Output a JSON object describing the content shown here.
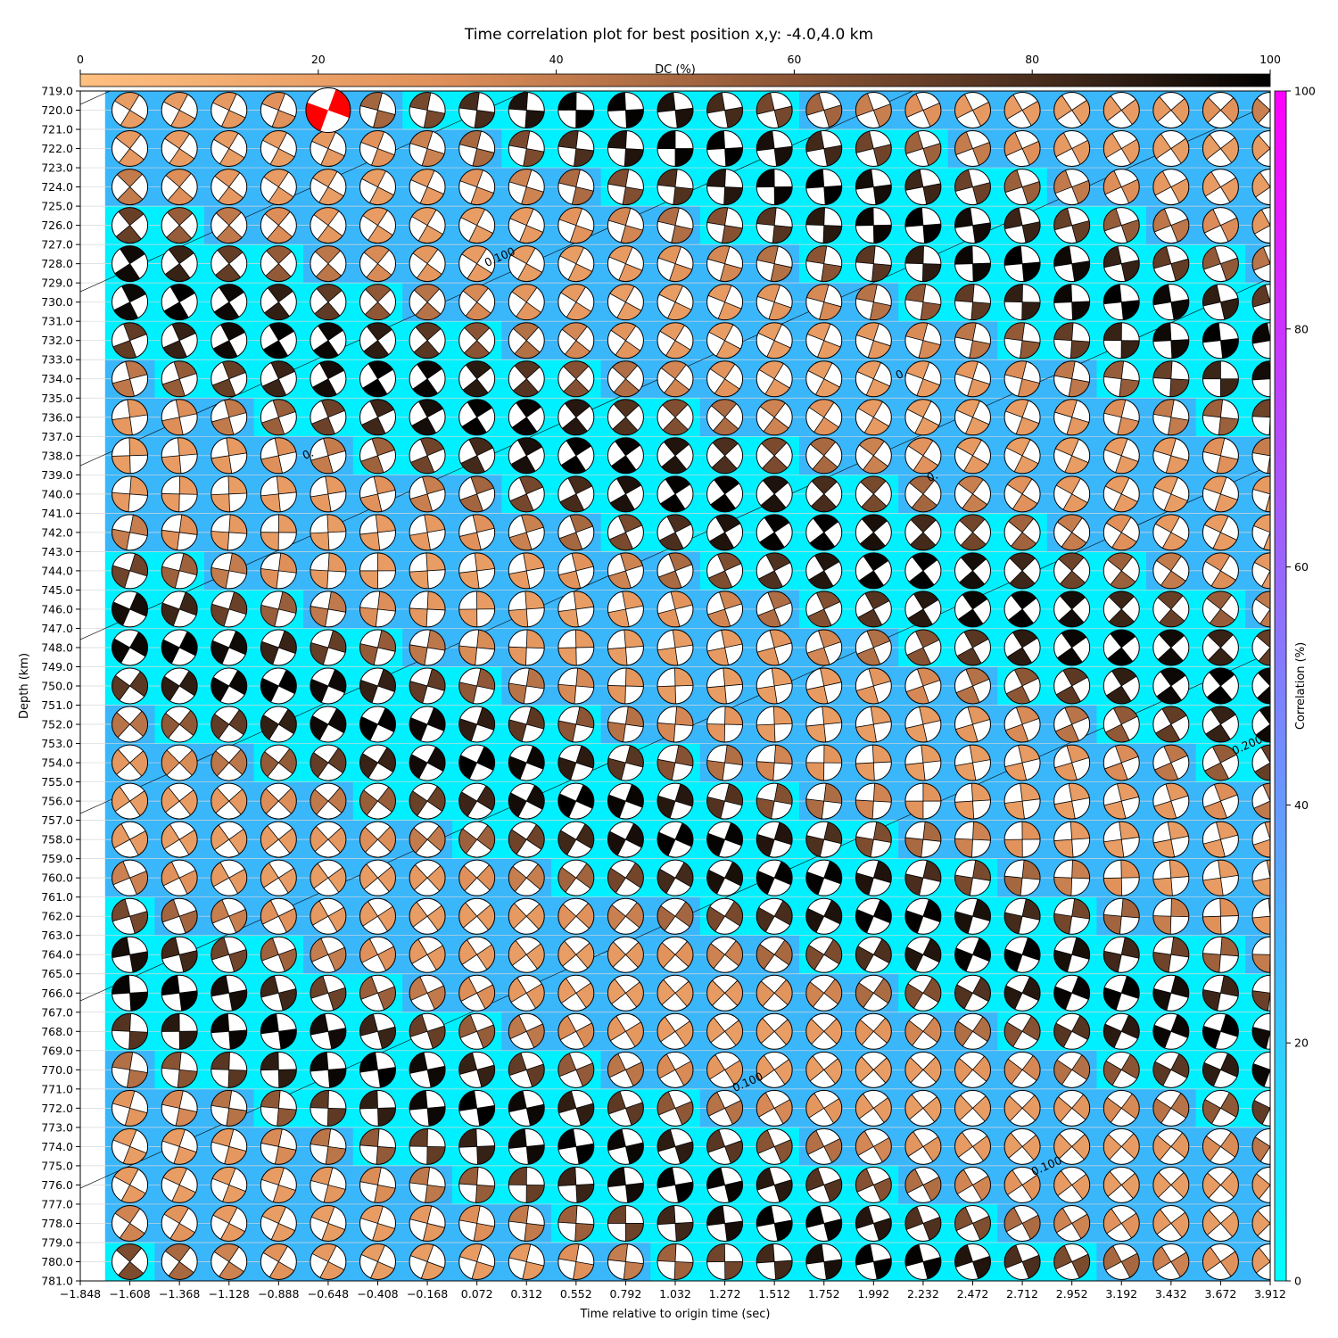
{
  "chart_data": {
    "type": "heatmap",
    "title": "Time correlation plot for best position x,y: -4.0,4.0 km",
    "xlabel": "Time relative to origin time (sec)",
    "ylabel": "Depth (km)",
    "xlim": [
      -1.848,
      3.912
    ],
    "ylim": [
      781.0,
      719.0
    ],
    "x_ticks": [
      "−1.848",
      "−1.608",
      "−1.368",
      "−1.128",
      "−0.888",
      "−0.648",
      "−0.408",
      "−0.168",
      "0.072",
      "0.312",
      "0.552",
      "0.792",
      "1.032",
      "1.272",
      "1.512",
      "1.752",
      "1.992",
      "2.232",
      "2.472",
      "2.712",
      "2.952",
      "3.192",
      "3.432",
      "3.672",
      "3.912"
    ],
    "y_ticks": [
      "719.0",
      "720.0",
      "721.0",
      "722.0",
      "723.0",
      "724.0",
      "725.0",
      "726.0",
      "727.0",
      "728.0",
      "729.0",
      "730.0",
      "731.0",
      "732.0",
      "733.0",
      "734.0",
      "735.0",
      "736.0",
      "737.0",
      "738.0",
      "739.0",
      "740.0",
      "741.0",
      "742.0",
      "743.0",
      "744.0",
      "745.0",
      "746.0",
      "747.0",
      "748.0",
      "749.0",
      "750.0",
      "751.0",
      "752.0",
      "753.0",
      "754.0",
      "755.0",
      "756.0",
      "757.0",
      "758.0",
      "759.0",
      "760.0",
      "761.0",
      "762.0",
      "763.0",
      "764.0",
      "765.0",
      "766.0",
      "767.0",
      "768.0",
      "769.0",
      "770.0",
      "771.0",
      "772.0",
      "773.0",
      "774.0",
      "775.0",
      "776.0",
      "777.0",
      "778.0",
      "779.0",
      "780.0",
      "781.0"
    ],
    "time_start": -1.608,
    "time_step": 0.24,
    "time_count": 24,
    "depth_start": 720.0,
    "depth_step": 2.0,
    "depth_count": 31,
    "best_solution": {
      "time": -0.648,
      "depth": 720.0,
      "color": "#ff0000"
    },
    "contour_labels": [
      "0.100",
      "0.",
      "0.",
      "0.",
      "0.200",
      "0.100",
      "0.100"
    ],
    "dc_colorbar": {
      "label": "DC (%)",
      "ticks": [
        "0",
        "20",
        "40",
        "60",
        "80",
        "100"
      ],
      "range": [
        0,
        100
      ],
      "placement": "top"
    },
    "correlation_colorbar": {
      "label": "Correlation (%)",
      "ticks": [
        "0",
        "20",
        "40",
        "60",
        "80",
        "100"
      ],
      "range": [
        0,
        100
      ],
      "placement": "right"
    },
    "colors": {
      "corr_low": "#00ffff",
      "corr_high": "#ff00ff",
      "dc_low": "#ffc080",
      "dc_high": "#000000",
      "background_main": "#38b8fd"
    },
    "grid": true
  }
}
